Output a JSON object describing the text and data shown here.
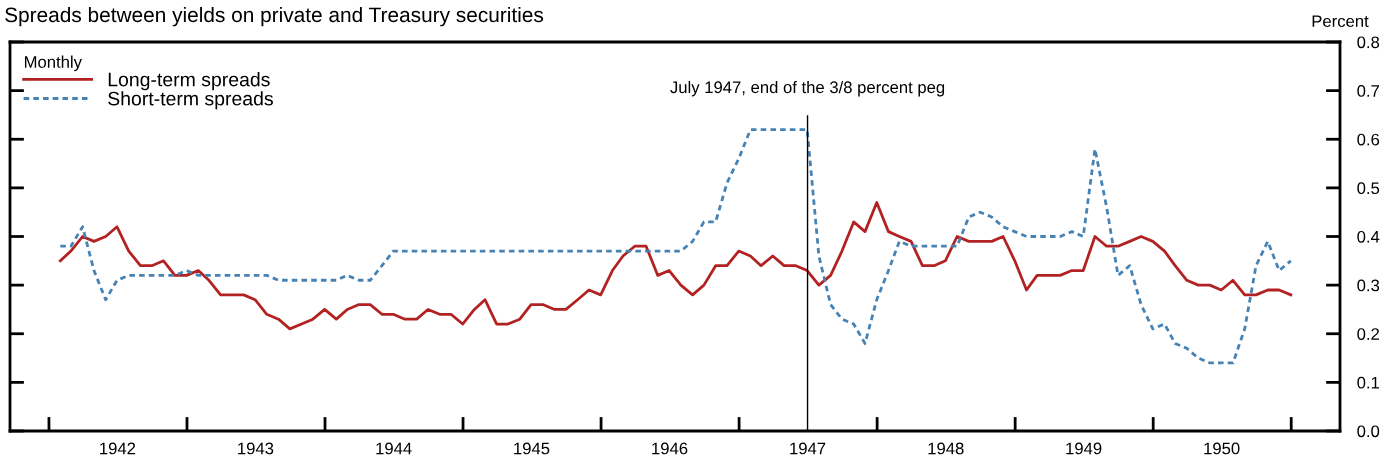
{
  "chart_data": {
    "type": "line",
    "title": "Spreads between yields on private and Treasury securities",
    "ylabel": "Percent",
    "legend_title": "Monthly",
    "legend": "top left",
    "grid": false,
    "x": [
      "1942-01-31",
      "1942-02-28",
      "1942-03-31",
      "1942-04-30",
      "1942-05-31",
      "1942-06-30",
      "1942-07-31",
      "1942-08-31",
      "1942-09-30",
      "1942-10-31",
      "1942-11-30",
      "1942-12-31",
      "1943-01-31",
      "1943-02-28",
      "1943-03-31",
      "1943-04-30",
      "1943-05-31",
      "1943-06-30",
      "1943-07-31",
      "1943-08-31",
      "1943-09-30",
      "1943-10-31",
      "1943-11-30",
      "1943-12-31",
      "1944-01-31",
      "1944-02-29",
      "1944-03-31",
      "1944-04-30",
      "1944-05-31",
      "1944-06-30",
      "1944-07-31",
      "1944-08-31",
      "1944-09-30",
      "1944-10-31",
      "1944-11-30",
      "1944-12-31",
      "1945-01-31",
      "1945-02-28",
      "1945-03-31",
      "1945-04-30",
      "1945-05-31",
      "1945-06-30",
      "1945-07-31",
      "1945-08-31",
      "1945-09-30",
      "1945-10-31",
      "1945-11-30",
      "1945-12-31",
      "1946-01-31",
      "1946-02-28",
      "1946-03-31",
      "1946-04-30",
      "1946-05-31",
      "1946-06-30",
      "1946-07-31",
      "1946-08-31",
      "1946-09-30",
      "1946-10-31",
      "1946-11-30",
      "1946-12-31",
      "1947-01-31",
      "1947-02-28",
      "1947-03-31",
      "1947-04-30",
      "1947-05-31",
      "1947-06-30",
      "1947-07-31",
      "1947-08-31",
      "1947-09-30",
      "1947-10-31",
      "1947-11-30",
      "1947-12-31",
      "1948-01-31",
      "1948-02-29",
      "1948-03-31",
      "1948-04-30",
      "1948-05-31",
      "1948-06-30",
      "1948-07-31",
      "1948-08-31",
      "1948-09-30",
      "1948-10-31",
      "1948-11-30",
      "1948-12-31",
      "1949-01-31",
      "1949-02-28",
      "1949-03-31",
      "1949-04-30",
      "1949-05-31",
      "1949-06-30",
      "1949-07-31",
      "1949-08-31",
      "1949-09-30",
      "1949-10-31",
      "1949-11-30",
      "1949-12-31",
      "1950-01-31",
      "1950-02-28",
      "1950-03-31",
      "1950-04-30",
      "1950-05-31",
      "1950-06-30",
      "1950-07-31",
      "1950-08-31",
      "1950-09-30",
      "1950-10-31",
      "1950-11-30",
      "1950-12-31"
    ],
    "series": [
      {
        "name": "Long-term spreads",
        "color": "#b22222",
        "line_style": "solid",
        "values": [
          0.35,
          0.37,
          0.4,
          0.39,
          0.4,
          0.42,
          0.37,
          0.34,
          0.34,
          0.35,
          0.32,
          0.32,
          0.33,
          0.31,
          0.28,
          0.28,
          0.28,
          0.27,
          0.24,
          0.23,
          0.21,
          0.22,
          0.23,
          0.25,
          0.23,
          0.25,
          0.26,
          0.26,
          0.24,
          0.24,
          0.23,
          0.23,
          0.25,
          0.24,
          0.24,
          0.22,
          0.25,
          0.27,
          0.22,
          0.22,
          0.23,
          0.26,
          0.26,
          0.25,
          0.25,
          0.27,
          0.29,
          0.28,
          0.33,
          0.36,
          0.38,
          0.38,
          0.32,
          0.33,
          0.3,
          0.28,
          0.3,
          0.34,
          0.34,
          0.37,
          0.36,
          0.34,
          0.36,
          0.34,
          0.34,
          0.33,
          0.3,
          0.32,
          0.37,
          0.43,
          0.41,
          0.47,
          0.41,
          0.4,
          0.39,
          0.34,
          0.34,
          0.35,
          0.4,
          0.39,
          0.39,
          0.39,
          0.4,
          0.35,
          0.29,
          0.32,
          0.32,
          0.32,
          0.33,
          0.33,
          0.4,
          0.38,
          0.38,
          0.39,
          0.4,
          0.39,
          0.37,
          0.34,
          0.31,
          0.3,
          0.3,
          0.29,
          0.31,
          0.28,
          0.28,
          0.29,
          0.29,
          0.28
        ]
      },
      {
        "name": "Short-term spreads",
        "color": "#4682b4",
        "line_style": "dotted",
        "values": [
          0.38,
          0.38,
          0.42,
          0.33,
          0.27,
          0.31,
          0.32,
          0.32,
          0.32,
          0.32,
          0.32,
          0.33,
          0.32,
          0.32,
          0.32,
          0.32,
          0.32,
          0.32,
          0.32,
          0.31,
          0.31,
          0.31,
          0.31,
          0.31,
          0.31,
          0.32,
          0.31,
          0.31,
          0.34,
          0.37,
          0.37,
          0.37,
          0.37,
          0.37,
          0.37,
          0.37,
          0.37,
          0.37,
          0.37,
          0.37,
          0.37,
          0.37,
          0.37,
          0.37,
          0.37,
          0.37,
          0.37,
          0.37,
          0.37,
          0.37,
          0.37,
          0.37,
          0.37,
          0.37,
          0.37,
          0.39,
          0.43,
          0.43,
          0.51,
          0.56,
          0.62,
          0.62,
          0.62,
          0.62,
          0.62,
          0.62,
          0.36,
          0.26,
          0.23,
          0.22,
          0.18,
          0.27,
          0.33,
          0.39,
          0.38,
          0.38,
          0.38,
          0.38,
          0.38,
          0.44,
          0.45,
          0.44,
          0.42,
          0.41,
          0.4,
          0.4,
          0.4,
          0.4,
          0.41,
          0.4,
          0.58,
          0.46,
          0.32,
          0.34,
          0.26,
          0.21,
          0.22,
          0.18,
          0.17,
          0.15,
          0.14,
          0.14,
          0.14,
          0.21,
          0.34,
          0.39,
          0.33,
          0.35
        ]
      }
    ],
    "xlim": [
      "1941-09-20",
      "1951-05-10"
    ],
    "xticks": [
      {
        "value": "1942-01-01",
        "label": null
      },
      {
        "value": "1942-07-01",
        "label": "1942"
      },
      {
        "value": "1943-01-01",
        "label": null
      },
      {
        "value": "1943-07-01",
        "label": "1943"
      },
      {
        "value": "1944-01-01",
        "label": null
      },
      {
        "value": "1944-07-01",
        "label": "1944"
      },
      {
        "value": "1945-01-01",
        "label": null
      },
      {
        "value": "1945-07-01",
        "label": "1945"
      },
      {
        "value": "1946-01-01",
        "label": null
      },
      {
        "value": "1946-07-01",
        "label": "1946"
      },
      {
        "value": "1947-01-01",
        "label": null
      },
      {
        "value": "1947-07-01",
        "label": "1947"
      },
      {
        "value": "1948-01-01",
        "label": null
      },
      {
        "value": "1948-07-01",
        "label": "1948"
      },
      {
        "value": "1949-01-01",
        "label": null
      },
      {
        "value": "1949-07-01",
        "label": "1949"
      },
      {
        "value": "1950-01-01",
        "label": null
      },
      {
        "value": "1950-07-01",
        "label": "1950"
      },
      {
        "value": "1951-01-01",
        "label": null
      }
    ],
    "ylim": [
      0,
      0.8
    ],
    "yticks": [
      {
        "value": 0,
        "label": "0.0"
      },
      {
        "value": 0.1,
        "label": "0.1"
      },
      {
        "value": 0.2,
        "label": "0.2"
      },
      {
        "value": 0.3,
        "label": "0.3"
      },
      {
        "value": 0.4,
        "label": "0.4"
      },
      {
        "value": 0.5,
        "label": "0.5"
      },
      {
        "value": 0.6,
        "label": "0.6"
      },
      {
        "value": 0.7,
        "label": "0.7"
      },
      {
        "value": 0.8,
        "label": "0.8"
      }
    ],
    "ref_lines": [
      {
        "axis": "x",
        "value": "1947-07-01",
        "label": "July 1947, end of the 3/8 percent peg",
        "color": "#000000",
        "line_style": "solid"
      }
    ]
  }
}
